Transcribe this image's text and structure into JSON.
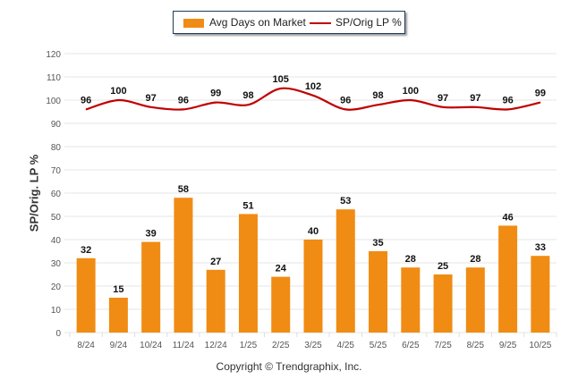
{
  "legend": {
    "bar_label": "Avg Days on Market",
    "line_label": "SP/Orig LP %"
  },
  "copyright": "Copyright © Trendgraphix, Inc.",
  "chart_data": {
    "type": "bar",
    "title": "",
    "xlabel": "",
    "ylabel": "SP/Orig. LP %",
    "ylim": [
      0,
      120
    ],
    "yticks": [
      0,
      10,
      20,
      30,
      40,
      50,
      60,
      70,
      80,
      90,
      100,
      110,
      120
    ],
    "grid": true,
    "legend_position": "top",
    "categories": [
      "8/24",
      "9/24",
      "10/24",
      "11/24",
      "12/24",
      "1/25",
      "2/25",
      "3/25",
      "4/25",
      "5/25",
      "6/25",
      "7/25",
      "8/25",
      "9/25",
      "10/25"
    ],
    "series": [
      {
        "name": "Avg Days on Market",
        "type": "bar",
        "color": "#f08c14",
        "values": [
          32,
          15,
          39,
          58,
          27,
          51,
          24,
          40,
          53,
          35,
          28,
          25,
          28,
          46,
          33
        ]
      },
      {
        "name": "SP/Orig LP %",
        "type": "line",
        "color": "#c00000",
        "values": [
          96,
          100,
          97,
          96,
          99,
          98,
          105,
          102,
          96,
          98,
          100,
          97,
          97,
          96,
          99
        ]
      }
    ]
  }
}
